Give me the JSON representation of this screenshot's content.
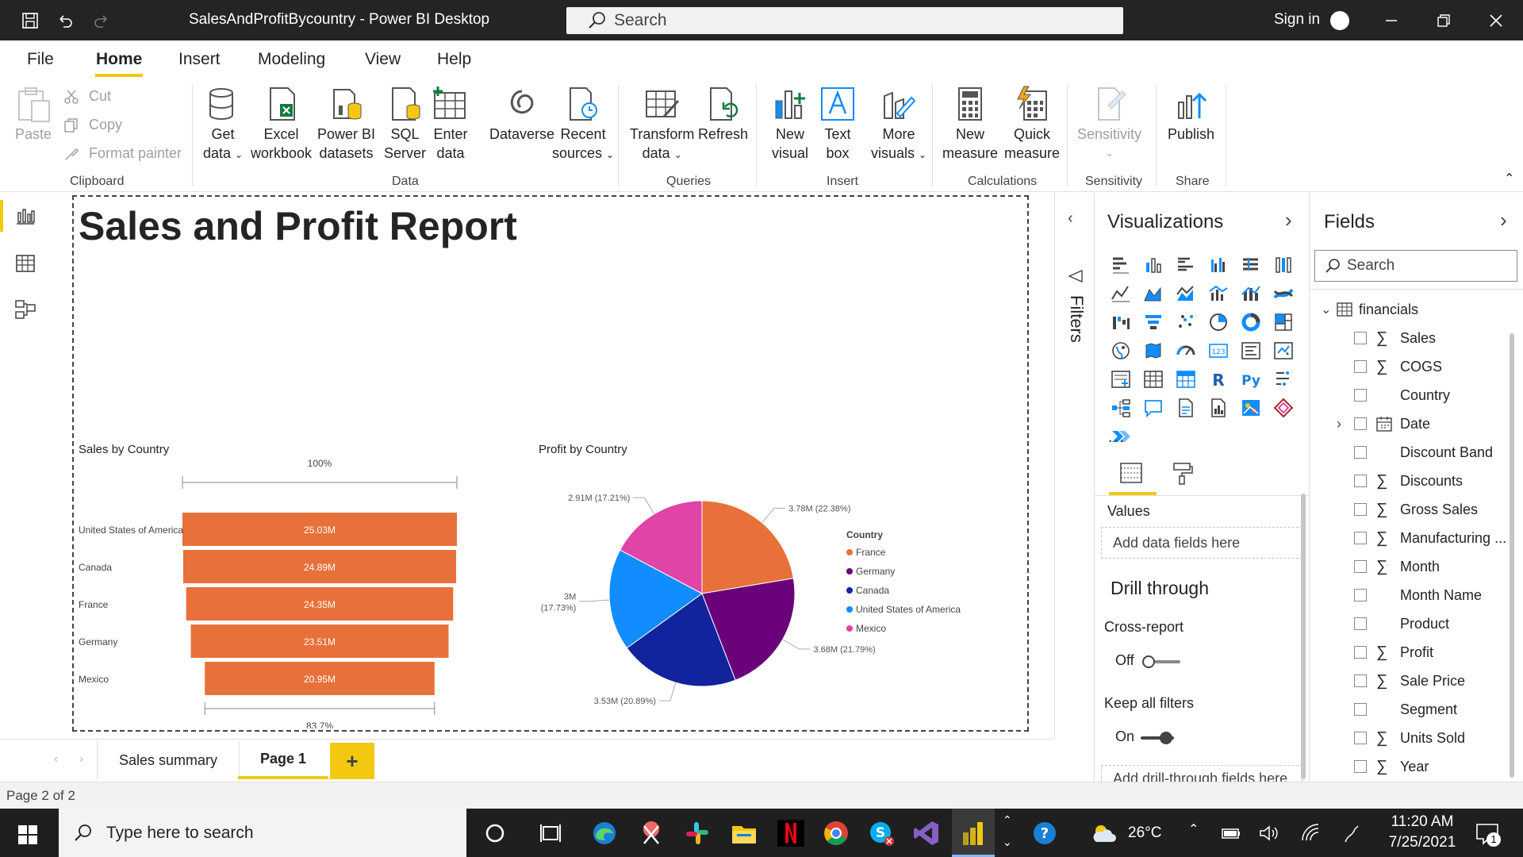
{
  "window": {
    "title": "SalesAndProfitBycountry - Power BI Desktop",
    "search_placeholder": "Search",
    "sign_in": "Sign in"
  },
  "menu": {
    "tabs": [
      "File",
      "Home",
      "Insert",
      "Modeling",
      "View",
      "Help"
    ],
    "active": "Home"
  },
  "ribbon": {
    "clipboard": {
      "paste": "Paste",
      "cut": "Cut",
      "copy": "Copy",
      "format_painter": "Format painter",
      "group": "Clipboard"
    },
    "data": {
      "get_data": [
        "Get",
        "data"
      ],
      "excel": [
        "Excel",
        "workbook"
      ],
      "pbi_datasets": [
        "Power BI",
        "datasets"
      ],
      "sql": [
        "SQL",
        "Server"
      ],
      "enter": [
        "Enter",
        "data"
      ],
      "dataverse": [
        "Dataverse"
      ],
      "recent": [
        "Recent",
        "sources"
      ],
      "group": "Data"
    },
    "queries": {
      "transform": [
        "Transform",
        "data"
      ],
      "refresh": [
        "Refresh"
      ],
      "group": "Queries"
    },
    "insert": {
      "new_visual": [
        "New",
        "visual"
      ],
      "text_box": [
        "Text",
        "box"
      ],
      "more_visuals": [
        "More",
        "visuals"
      ],
      "group": "Insert"
    },
    "calculations": {
      "new_measure": [
        "New",
        "measure"
      ],
      "quick_measure": [
        "Quick",
        "measure"
      ],
      "group": "Calculations"
    },
    "sensitivity": {
      "label": [
        "Sensitivity"
      ],
      "group": "Sensitivity"
    },
    "share": {
      "publish": [
        "Publish"
      ],
      "group": "Share"
    }
  },
  "report": {
    "title": "Sales and Profit Report"
  },
  "funnel": {
    "title": "Sales by Country",
    "top_label": "100%",
    "bottom_label": "83.7%",
    "color": "#e8703a"
  },
  "pie": {
    "title": "Profit by Country",
    "legend_title": "Country"
  },
  "chart_data": [
    {
      "type": "bar",
      "title": "Sales by Country",
      "categories": [
        "United States of America",
        "Canada",
        "France",
        "Germany",
        "Mexico"
      ],
      "values": [
        25.03,
        24.89,
        24.35,
        23.51,
        20.95
      ],
      "value_labels": [
        "25.03M",
        "24.89M",
        "24.35M",
        "23.51M",
        "20.95M"
      ],
      "unit": "M",
      "funnel_top": "100%",
      "funnel_bottom": "83.7%"
    },
    {
      "type": "pie",
      "title": "Profit by Country",
      "legend_title": "Country",
      "legend_position": "right",
      "slices": [
        {
          "name": "France",
          "value": 3.78,
          "label": "3.78M (22.38%)",
          "color": "#e8703a"
        },
        {
          "name": "Germany",
          "value": 3.68,
          "label": "3.68M (21.79%)",
          "color": "#6b007b"
        },
        {
          "name": "Canada",
          "value": 3.53,
          "label": "3.53M (20.89%)",
          "color": "#12239e"
        },
        {
          "name": "United States of America",
          "value": 3.0,
          "label": "3M (17.73%)",
          "label_lines": [
            "3M",
            "(17.73%)"
          ],
          "color": "#118dff"
        },
        {
          "name": "Mexico",
          "value": 2.91,
          "label": "2.91M (17.21%)",
          "color": "#e044a7"
        }
      ]
    }
  ],
  "filters": {
    "label": "Filters"
  },
  "visualizations": {
    "title": "Visualizations",
    "values_label": "Values",
    "values_well": "Add data fields here",
    "drill_through": "Drill through",
    "cross_report": "Cross-report",
    "cross_report_state": "Off",
    "keep_filters": "Keep all filters",
    "keep_filters_state": "On",
    "drill_well": "Add drill-through fields here",
    "more": "···"
  },
  "fields": {
    "title": "Fields",
    "search_placeholder": "Search",
    "table": "financials",
    "items": [
      {
        "label": "Sales",
        "sigma": true
      },
      {
        "label": "COGS",
        "sigma": true
      },
      {
        "label": "Country",
        "sigma": false
      },
      {
        "label": "Date",
        "sigma": false,
        "calendar": true
      },
      {
        "label": "Discount Band",
        "sigma": false
      },
      {
        "label": "Discounts",
        "sigma": true
      },
      {
        "label": "Gross Sales",
        "sigma": true
      },
      {
        "label": "Manufacturing ...",
        "sigma": true
      },
      {
        "label": "Month",
        "sigma": true
      },
      {
        "label": "Month Name",
        "sigma": false
      },
      {
        "label": "Product",
        "sigma": false
      },
      {
        "label": "Profit",
        "sigma": true
      },
      {
        "label": "Sale Price",
        "sigma": true
      },
      {
        "label": "Segment",
        "sigma": false
      },
      {
        "label": "Units Sold",
        "sigma": true
      },
      {
        "label": "Year",
        "sigma": true
      }
    ]
  },
  "pages": {
    "tabs": [
      "Sales summary",
      "Page 1"
    ],
    "active": "Page 1",
    "add": "+"
  },
  "status": {
    "text": "Page 2 of 2"
  },
  "taskbar": {
    "search": "Type here to search",
    "weather": "26°C",
    "time": "11:20 AM",
    "date": "7/25/2021",
    "notifications": "1"
  },
  "colors": {
    "accent": "#f2c811",
    "titlebar": "#252423"
  }
}
